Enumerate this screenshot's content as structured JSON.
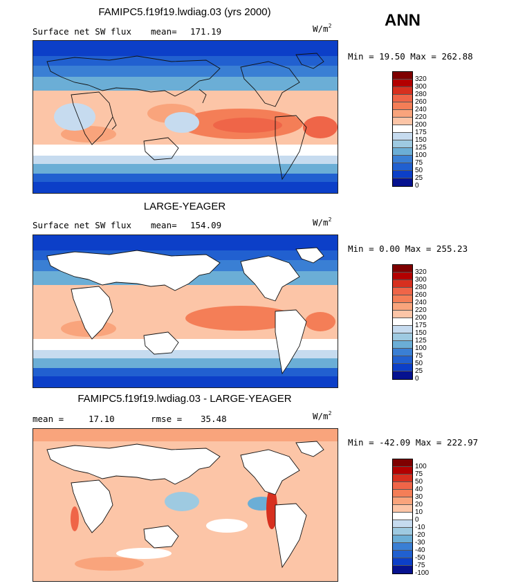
{
  "season": "ANN",
  "panels": [
    {
      "title": "FAMIPC5.f19f19.lwdiag.03 (yrs 2000)",
      "left_label": "Surface net SW flux",
      "stat_label": "mean=",
      "stat_value": "171.19",
      "units": "W/m",
      "units_exp": "2",
      "minmax": "Min =  19.50 Max = 262.88",
      "colorbar_labels": [
        "320",
        "300",
        "280",
        "260",
        "240",
        "220",
        "200",
        "175",
        "150",
        "125",
        "100",
        "75",
        "50",
        "25",
        "0"
      ],
      "map_kind": "abs_full"
    },
    {
      "title": "LARGE-YEAGER",
      "left_label": "Surface net SW flux",
      "stat_label": "mean=",
      "stat_value": "154.09",
      "units": "W/m",
      "units_exp": "2",
      "minmax": "Min =   0.00 Max = 255.23",
      "colorbar_labels": [
        "320",
        "300",
        "280",
        "260",
        "240",
        "220",
        "200",
        "175",
        "150",
        "125",
        "100",
        "75",
        "50",
        "25",
        "0"
      ],
      "map_kind": "abs_ocean"
    },
    {
      "title": "FAMIPC5.f19f19.lwdiag.03 - LARGE-YEAGER",
      "left_label": "mean =",
      "left_value": "17.10",
      "stat_label": "rmse =",
      "stat_value": "35.48",
      "units": "W/m",
      "units_exp": "2",
      "minmax": "Min = -42.09 Max = 222.97",
      "colorbar_labels": [
        "100",
        "75",
        "50",
        "40",
        "30",
        "20",
        "10",
        "0",
        "-10",
        "-20",
        "-30",
        "-40",
        "-50",
        "-75",
        "-100"
      ],
      "map_kind": "diff"
    }
  ],
  "colors": {
    "abs_scale": [
      "#7f0000",
      "#b30000",
      "#d7301f",
      "#ef6548",
      "#f47e57",
      "#f9a47c",
      "#fcc5a7",
      "#ffffff",
      "#c6dbef",
      "#9ecae1",
      "#6baed6",
      "#3a7fd4",
      "#2160d0",
      "#0c3fc8",
      "#06128f"
    ],
    "diff_scale": [
      "#7f0000",
      "#b30000",
      "#d7301f",
      "#ef6548",
      "#f47e57",
      "#f9a47c",
      "#fcc5a7",
      "#ffffff",
      "#c6dbef",
      "#9ecae1",
      "#6baed6",
      "#3a7fd4",
      "#2160d0",
      "#0c3fc8",
      "#06128f"
    ]
  }
}
